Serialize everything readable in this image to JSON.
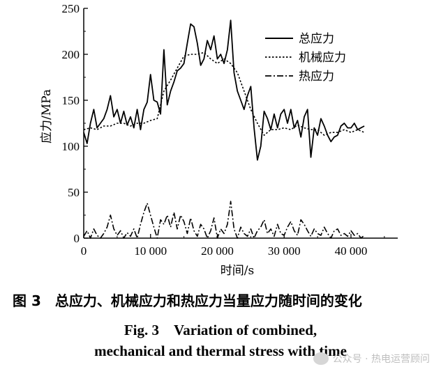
{
  "chart_data": {
    "type": "line",
    "xlabel": "时间/s",
    "ylabel": "应力/MPa",
    "xlim": [
      0,
      47000
    ],
    "ylim": [
      0,
      250
    ],
    "xticks": [
      0,
      10000,
      20000,
      30000,
      40000
    ],
    "xtick_labels": [
      "0",
      "10 000",
      "20 000",
      "30 000",
      "40 000"
    ],
    "yticks": [
      0,
      50,
      100,
      150,
      200,
      250
    ],
    "ytick_labels": [
      "0",
      "50",
      "100",
      "150",
      "200",
      "250"
    ],
    "legend_position": "top-right",
    "series": [
      {
        "name": "总应力",
        "style": "solid",
        "x": [
          0,
          500,
          1000,
          1500,
          2000,
          2500,
          3000,
          3500,
          4000,
          4500,
          5000,
          5500,
          6000,
          6500,
          7000,
          7500,
          8000,
          8500,
          9000,
          9500,
          10000,
          10500,
          11000,
          11500,
          12000,
          12500,
          13000,
          13500,
          14000,
          14500,
          15000,
          15500,
          16000,
          16500,
          17000,
          17500,
          18000,
          18500,
          19000,
          19500,
          20000,
          20500,
          21000,
          21500,
          22000,
          22500,
          23000,
          23500,
          24000,
          24500,
          25000,
          25500,
          26000,
          26500,
          27000,
          27500,
          28000,
          28500,
          29000,
          29500,
          30000,
          30500,
          31000,
          31500,
          32000,
          32500,
          33000,
          33500,
          34000,
          34500,
          35000,
          35500,
          36000,
          36500,
          37000,
          37500,
          38000,
          38500,
          39000,
          39500,
          40000,
          40500,
          41000,
          41500,
          42000
        ],
        "y": [
          115,
          103,
          125,
          140,
          120,
          125,
          130,
          140,
          155,
          132,
          140,
          125,
          138,
          123,
          132,
          120,
          140,
          118,
          140,
          148,
          178,
          150,
          148,
          135,
          205,
          145,
          160,
          170,
          182,
          185,
          190,
          212,
          233,
          230,
          212,
          188,
          195,
          215,
          205,
          220,
          195,
          200,
          190,
          205,
          237,
          180,
          160,
          150,
          140,
          155,
          165,
          120,
          85,
          100,
          138,
          130,
          118,
          135,
          120,
          135,
          140,
          125,
          140,
          120,
          128,
          110,
          132,
          140,
          88,
          120,
          112,
          130,
          122,
          112,
          105,
          110,
          112,
          122,
          125,
          120,
          120,
          125,
          118,
          120,
          122
        ]
      },
      {
        "name": "机械应力",
        "style": "dotted",
        "x": [
          0,
          1000,
          2000,
          3000,
          4000,
          5000,
          6000,
          7000,
          8000,
          9000,
          10000,
          11000,
          12000,
          13000,
          14000,
          15000,
          16000,
          17000,
          18000,
          19000,
          20000,
          21000,
          22000,
          23000,
          24000,
          25000,
          26000,
          27000,
          28000,
          29000,
          30000,
          31000,
          32000,
          33000,
          34000,
          35000,
          36000,
          37000,
          38000,
          39000,
          40000,
          41000,
          42000
        ],
        "y": [
          118,
          120,
          118,
          122,
          122,
          125,
          125,
          122,
          125,
          125,
          128,
          130,
          160,
          172,
          185,
          198,
          200,
          200,
          202,
          195,
          190,
          195,
          190,
          180,
          160,
          140,
          125,
          112,
          118,
          118,
          120,
          118,
          123,
          120,
          118,
          118,
          112,
          115,
          115,
          118,
          115,
          118,
          115
        ]
      },
      {
        "name": "热应力",
        "style": "dashdot",
        "x": [
          0,
          500,
          1000,
          1500,
          2000,
          2500,
          3000,
          3500,
          4000,
          4500,
          5000,
          5500,
          6000,
          6500,
          7000,
          7500,
          8000,
          8500,
          9000,
          9500,
          10000,
          10500,
          11000,
          11500,
          12000,
          12500,
          13000,
          13500,
          14000,
          14500,
          15000,
          15500,
          16000,
          16500,
          17000,
          17500,
          18000,
          18500,
          19000,
          19500,
          20000,
          20500,
          21000,
          21500,
          22000,
          22500,
          23000,
          23500,
          24000,
          24500,
          25000,
          25500,
          26000,
          26500,
          27000,
          27500,
          28000,
          28500,
          29000,
          29500,
          30000,
          30500,
          31000,
          31500,
          32000,
          32500,
          33000,
          33500,
          34000,
          34500,
          35000,
          35500,
          36000,
          36500,
          37000,
          37500,
          38000,
          38500,
          39000,
          39500,
          40000,
          40500,
          41000,
          41500,
          42000
        ],
        "y": [
          2,
          8,
          0,
          10,
          3,
          0,
          5,
          12,
          25,
          10,
          3,
          8,
          0,
          6,
          2,
          10,
          0,
          15,
          28,
          38,
          25,
          12,
          0,
          20,
          15,
          25,
          12,
          28,
          10,
          25,
          18,
          5,
          22,
          8,
          2,
          15,
          10,
          0,
          8,
          22,
          0,
          10,
          5,
          15,
          40,
          10,
          0,
          12,
          5,
          2,
          10,
          0,
          8,
          12,
          20,
          5,
          10,
          2,
          15,
          5,
          3,
          12,
          18,
          8,
          3,
          20,
          15,
          8,
          2,
          10,
          5,
          3,
          12,
          5,
          0,
          8,
          10,
          3,
          5,
          2,
          8,
          3,
          5,
          0,
          3
        ]
      }
    ]
  },
  "captions": {
    "cn": "图 3　总应力、机械应力和热应力当量应力随时间的变化",
    "en_line1": "Fig. 3　Variation of combined,",
    "en_line2": "mechanical and thermal stress with time"
  },
  "watermark": "公众号 · 热电运营顾问"
}
